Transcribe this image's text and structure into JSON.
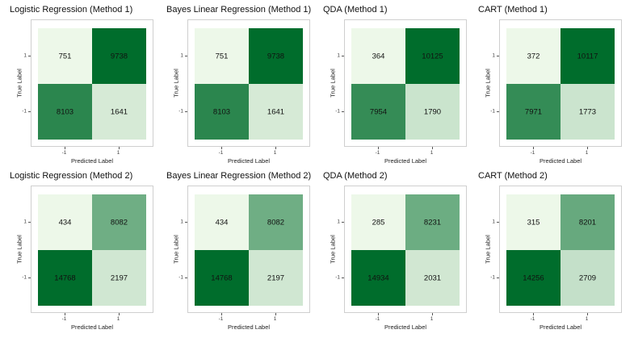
{
  "chart_data": [
    {
      "type": "heatmap",
      "title": "Logistic Regression (Method 1)",
      "xlabel": "Predicted Label",
      "ylabel": "True Label",
      "x_categories": [
        "-1",
        "1"
      ],
      "y_categories": [
        "1",
        "-1"
      ],
      "cells": [
        {
          "true": "1",
          "predicted": "-1",
          "value": 751
        },
        {
          "true": "1",
          "predicted": "1",
          "value": 9738
        },
        {
          "true": "-1",
          "predicted": "-1",
          "value": 8103
        },
        {
          "true": "-1",
          "predicted": "1",
          "value": 1641
        }
      ]
    },
    {
      "type": "heatmap",
      "title": "Bayes Linear Regression (Method 1)",
      "xlabel": "Predicted Label",
      "ylabel": "True Label",
      "x_categories": [
        "-1",
        "1"
      ],
      "y_categories": [
        "1",
        "-1"
      ],
      "cells": [
        {
          "true": "1",
          "predicted": "-1",
          "value": 751
        },
        {
          "true": "1",
          "predicted": "1",
          "value": 9738
        },
        {
          "true": "-1",
          "predicted": "-1",
          "value": 8103
        },
        {
          "true": "-1",
          "predicted": "1",
          "value": 1641
        }
      ]
    },
    {
      "type": "heatmap",
      "title": "QDA (Method 1)",
      "xlabel": "Predicted Label",
      "ylabel": "True Label",
      "x_categories": [
        "-1",
        "1"
      ],
      "y_categories": [
        "1",
        "-1"
      ],
      "cells": [
        {
          "true": "1",
          "predicted": "-1",
          "value": 364
        },
        {
          "true": "1",
          "predicted": "1",
          "value": 10125
        },
        {
          "true": "-1",
          "predicted": "-1",
          "value": 7954
        },
        {
          "true": "-1",
          "predicted": "1",
          "value": 1790
        }
      ]
    },
    {
      "type": "heatmap",
      "title": "CART (Method 1)",
      "xlabel": "Predicted Label",
      "ylabel": "True Label",
      "x_categories": [
        "-1",
        "1"
      ],
      "y_categories": [
        "1",
        "-1"
      ],
      "cells": [
        {
          "true": "1",
          "predicted": "-1",
          "value": 372
        },
        {
          "true": "1",
          "predicted": "1",
          "value": 10117
        },
        {
          "true": "-1",
          "predicted": "-1",
          "value": 7971
        },
        {
          "true": "-1",
          "predicted": "1",
          "value": 1773
        }
      ]
    },
    {
      "type": "heatmap",
      "title": "Logistic Regression (Method 2)",
      "xlabel": "Predicted Label",
      "ylabel": "True Label",
      "x_categories": [
        "-1",
        "1"
      ],
      "y_categories": [
        "1",
        "-1"
      ],
      "cells": [
        {
          "true": "1",
          "predicted": "-1",
          "value": 434
        },
        {
          "true": "1",
          "predicted": "1",
          "value": 8082
        },
        {
          "true": "-1",
          "predicted": "-1",
          "value": 14768
        },
        {
          "true": "-1",
          "predicted": "1",
          "value": 2197
        }
      ]
    },
    {
      "type": "heatmap",
      "title": "Bayes Linear Regression (Method 2)",
      "xlabel": "Predicted Label",
      "ylabel": "True Label",
      "x_categories": [
        "-1",
        "1"
      ],
      "y_categories": [
        "1",
        "-1"
      ],
      "cells": [
        {
          "true": "1",
          "predicted": "-1",
          "value": 434
        },
        {
          "true": "1",
          "predicted": "1",
          "value": 8082
        },
        {
          "true": "-1",
          "predicted": "-1",
          "value": 14768
        },
        {
          "true": "-1",
          "predicted": "1",
          "value": 2197
        }
      ]
    },
    {
      "type": "heatmap",
      "title": "QDA (Method 2)",
      "xlabel": "Predicted Label",
      "ylabel": "True Label",
      "x_categories": [
        "-1",
        "1"
      ],
      "y_categories": [
        "1",
        "-1"
      ],
      "cells": [
        {
          "true": "1",
          "predicted": "-1",
          "value": 285
        },
        {
          "true": "1",
          "predicted": "1",
          "value": 8231
        },
        {
          "true": "-1",
          "predicted": "-1",
          "value": 14934
        },
        {
          "true": "-1",
          "predicted": "1",
          "value": 2031
        }
      ]
    },
    {
      "type": "heatmap",
      "title": "CART (Method 2)",
      "xlabel": "Predicted Label",
      "ylabel": "True Label",
      "x_categories": [
        "-1",
        "1"
      ],
      "y_categories": [
        "1",
        "-1"
      ],
      "cells": [
        {
          "true": "1",
          "predicted": "-1",
          "value": 315
        },
        {
          "true": "1",
          "predicted": "1",
          "value": 8201
        },
        {
          "true": "-1",
          "predicted": "-1",
          "value": 14256
        },
        {
          "true": "-1",
          "predicted": "1",
          "value": 2709
        }
      ]
    }
  ],
  "colors": {
    "low": "#edf8e9",
    "high": "#006d2c"
  }
}
